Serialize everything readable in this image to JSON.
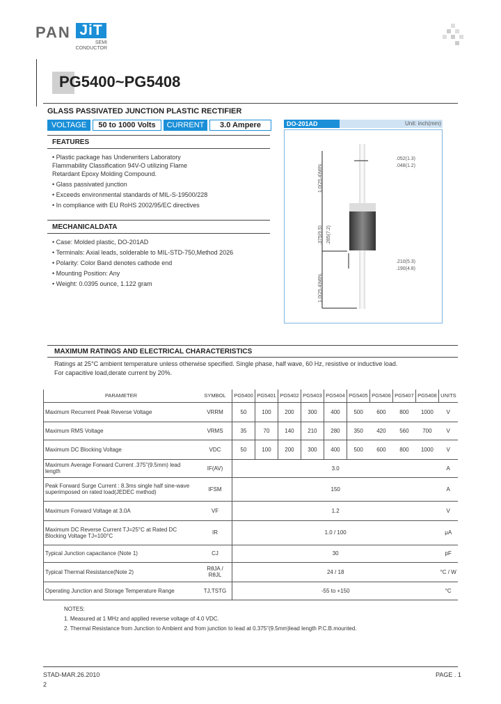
{
  "logo": {
    "brand_left": "PAN",
    "brand_right": "JiT",
    "sub1": "SEMI",
    "sub2": "CONDUCTOR"
  },
  "title": "PG5400~PG5408",
  "subtitle": "GLASS PASSIVATED JUNCTION PLASTIC RECTIFIER",
  "tags": {
    "voltage_label": "VOLTAGE",
    "voltage_value": "50 to 1000 Volts",
    "current_label": "CURRENT",
    "current_value": "3.0 Ampere"
  },
  "features": {
    "heading": "FEATURES",
    "items": [
      "Plastic package has Underwriters Laboratory Flammability Classification 94V-O utilizing Flame Retardant Epoxy Molding Compound.",
      "Glass passivated junction",
      "Exceeds environmental standards of MIL-S-19500/228",
      "In compliance with EU RoHS 2002/95/EC directives"
    ]
  },
  "mechanical": {
    "heading": "MECHANICALDATA",
    "items": [
      "Case: Molded plastic, DO-201AD",
      "Terminals: Axial leads, solderable to MIL-STD-750,Method 2026",
      "Polarity: Color Band denotes cathode end",
      "Mounting Position: Any",
      "Weight: 0.0395 ounce, 1.122 gram"
    ]
  },
  "package": {
    "name": "DO-201AD",
    "unit": "Unit: inch(mm)",
    "dims": {
      "lead_len_top": "1.0(25.4)MIN.",
      "lead_dia_a": ".052(1.3)",
      "lead_dia_b": ".048(1.2)",
      "body_len_a": ".375(9.5)",
      "body_len_b": ".285(7.2)",
      "body_dia_a": ".210(5.3)",
      "body_dia_b": ".190(4.8)",
      "lead_len_bot": "1.0(25.4)MIN."
    }
  },
  "ratings": {
    "heading": "MAXIMUM RATINGS AND ELECTRICAL CHARACTERISTICS",
    "line1": "Ratings at 25°C ambient temperature unless otherwise specified.  Single phase, half wave, 60 Hz, resistive or inductive load.",
    "line2": "For capacitive load,derate current by 20%."
  },
  "table": {
    "headers": [
      "PARAMETER",
      "SYMBOL",
      "PG5400",
      "PG5401",
      "PG5402",
      "PG5403",
      "PG5404",
      "PG5405",
      "PG5406",
      "PG5407",
      "PG5408",
      "UNITS"
    ],
    "rows": [
      {
        "param": "Maximum Recurrent Peak Reverse Voltage",
        "symbol": "VRRM",
        "values": [
          "50",
          "100",
          "200",
          "300",
          "400",
          "500",
          "600",
          "800",
          "1000"
        ],
        "unit": "V"
      },
      {
        "param": "Maximum RMS Voltage",
        "symbol": "VRMS",
        "values": [
          "35",
          "70",
          "140",
          "210",
          "280",
          "350",
          "420",
          "560",
          "700"
        ],
        "unit": "V"
      },
      {
        "param": "Maximum DC Blocking Voltage",
        "symbol": "VDC",
        "values": [
          "50",
          "100",
          "200",
          "300",
          "400",
          "500",
          "600",
          "800",
          "1000"
        ],
        "unit": "V"
      },
      {
        "param": "Maximum Average Forward  Current .375\"(9.5mm) lead length",
        "symbol": "IF(AV)",
        "value": "3.0",
        "unit": "A"
      },
      {
        "param": "Peak Forward Surge Current : 8.3ms single half sine-wave superimposed on rated load(JEDEC method)",
        "symbol": "IFSM",
        "value": "150",
        "unit": "A"
      },
      {
        "param": "Maximum Forward Voltage at 3.0A",
        "symbol": "VF",
        "value": "1.2",
        "unit": "V"
      },
      {
        "param": "Maximum DC Reverse Current TJ=25°C at Rated DC Blocking Voltage TJ=100°C",
        "symbol": "IR",
        "value": "1.0 / 100",
        "unit": "μA"
      },
      {
        "param": "Typical Junction capacitance (Note 1)",
        "symbol": "CJ",
        "value": "30",
        "unit": "pF"
      },
      {
        "param": "Typical Thermal Resistance(Note 2)",
        "symbol": "RθJA / RθJL",
        "value": "24 / 18",
        "unit": "°C / W"
      },
      {
        "param": "Operating Junction and Storage Temperature Range",
        "symbol": "TJ,TSTG",
        "value": "-55 to +150",
        "unit": "°C"
      }
    ]
  },
  "notes": {
    "heading": "NOTES:",
    "items": [
      "1. Measured at 1 MHz and applied reverse voltage of 4.0 VDC.",
      "2. Thermal Resistance from Junction to Ambient and from junction to lead at 0.375\"(9.5mm)lead length P.C.B.mounted."
    ]
  },
  "footer": {
    "left": "STAD-MAR.26.2010",
    "page": "PAGE . 1",
    "num": "2"
  }
}
